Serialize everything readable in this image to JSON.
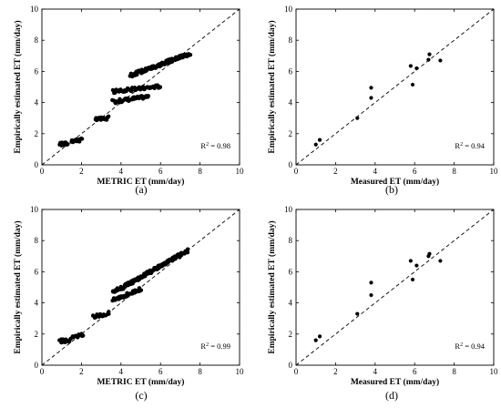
{
  "chart_data": [
    {
      "type": "scatter",
      "caption": "(a)",
      "xlabel": "METRIC ET (mm/day)",
      "ylabel": "Empirically estimated ET (mm/day)",
      "xlim": [
        0,
        10
      ],
      "ylim": [
        0,
        10
      ],
      "xticks": [
        "0",
        "2",
        "4",
        "6",
        "8",
        "10"
      ],
      "yticks": [
        "0",
        "2",
        "4",
        "6",
        "8",
        "10"
      ],
      "r2_label": "R",
      "r2_sup": "2",
      "r2_value": " = 0.98",
      "one_to_one_line": true,
      "dense_segments": [
        {
          "x0": 0.9,
          "y0": 1.32,
          "x1": 1.3,
          "y1": 1.36,
          "n": 14
        },
        {
          "x0": 1.5,
          "y0": 1.55,
          "x1": 2.0,
          "y1": 1.6,
          "n": 14
        },
        {
          "x0": 2.7,
          "y0": 2.9,
          "x1": 3.4,
          "y1": 3.0,
          "n": 18
        },
        {
          "x0": 3.6,
          "y0": 4.05,
          "x1": 5.4,
          "y1": 4.4,
          "n": 40
        },
        {
          "x0": 3.6,
          "y0": 4.7,
          "x1": 6.0,
          "y1": 5.05,
          "n": 55
        },
        {
          "x0": 4.5,
          "y0": 5.75,
          "x1": 7.5,
          "y1": 7.15,
          "n": 120
        }
      ],
      "points": []
    },
    {
      "type": "scatter",
      "caption": "(b)",
      "xlabel": "Measured ET (mm/day)",
      "ylabel": "Empirically estimated ET (mm/day)",
      "xlim": [
        0,
        10
      ],
      "ylim": [
        0,
        10
      ],
      "xticks": [
        "0",
        "2",
        "4",
        "6",
        "8",
        "10"
      ],
      "yticks": [
        "0",
        "2",
        "4",
        "6",
        "8",
        "10"
      ],
      "r2_label": "R",
      "r2_sup": "2",
      "r2_value": " = 0.94",
      "one_to_one_line": true,
      "dense_segments": [],
      "points": [
        [
          1.0,
          1.3
        ],
        [
          1.2,
          1.6
        ],
        [
          3.1,
          3.0
        ],
        [
          3.8,
          4.95
        ],
        [
          3.8,
          4.3
        ],
        [
          5.8,
          6.35
        ],
        [
          5.9,
          5.15
        ],
        [
          6.1,
          6.2
        ],
        [
          6.7,
          6.75
        ],
        [
          6.75,
          7.1
        ],
        [
          7.3,
          6.7
        ]
      ]
    },
    {
      "type": "scatter",
      "caption": "(c)",
      "xlabel": "METRIC ET (mm/day)",
      "ylabel": "Empirically estimated ET (mm/day)",
      "xlim": [
        0,
        10
      ],
      "ylim": [
        0,
        10
      ],
      "xticks": [
        "0",
        "2",
        "4",
        "6",
        "8",
        "10"
      ],
      "yticks": [
        "0",
        "2",
        "4",
        "6",
        "8",
        "10"
      ],
      "r2_label": "R",
      "r2_sup": "2",
      "r2_value": " = 0.99",
      "one_to_one_line": true,
      "dense_segments": [
        {
          "x0": 0.9,
          "y0": 1.55,
          "x1": 1.4,
          "y1": 1.6,
          "n": 14
        },
        {
          "x0": 1.5,
          "y0": 1.75,
          "x1": 2.1,
          "y1": 1.95,
          "n": 14
        },
        {
          "x0": 2.6,
          "y0": 3.1,
          "x1": 3.4,
          "y1": 3.35,
          "n": 18
        },
        {
          "x0": 3.6,
          "y0": 4.2,
          "x1": 5.0,
          "y1": 4.9,
          "n": 40
        },
        {
          "x0": 3.6,
          "y0": 4.65,
          "x1": 7.4,
          "y1": 7.35,
          "n": 150
        }
      ],
      "points": []
    },
    {
      "type": "scatter",
      "caption": "(d)",
      "xlabel": "Measured ET (mm/day)",
      "ylabel": "Empirically estimated ET (mm/day)",
      "xlim": [
        0,
        10
      ],
      "ylim": [
        0,
        10
      ],
      "xticks": [
        "0",
        "2",
        "4",
        "6",
        "8",
        "10"
      ],
      "yticks": [
        "0",
        "2",
        "4",
        "6",
        "8",
        "10"
      ],
      "r2_label": "R",
      "r2_sup": "2",
      "r2_value": " = 0.94",
      "one_to_one_line": true,
      "dense_segments": [],
      "points": [
        [
          1.0,
          1.6
        ],
        [
          1.2,
          1.85
        ],
        [
          3.1,
          3.3
        ],
        [
          3.8,
          5.3
        ],
        [
          3.8,
          4.5
        ],
        [
          5.8,
          6.7
        ],
        [
          5.9,
          5.5
        ],
        [
          6.1,
          6.4
        ],
        [
          6.7,
          7.0
        ],
        [
          6.75,
          7.15
        ],
        [
          7.3,
          6.7
        ]
      ]
    }
  ]
}
